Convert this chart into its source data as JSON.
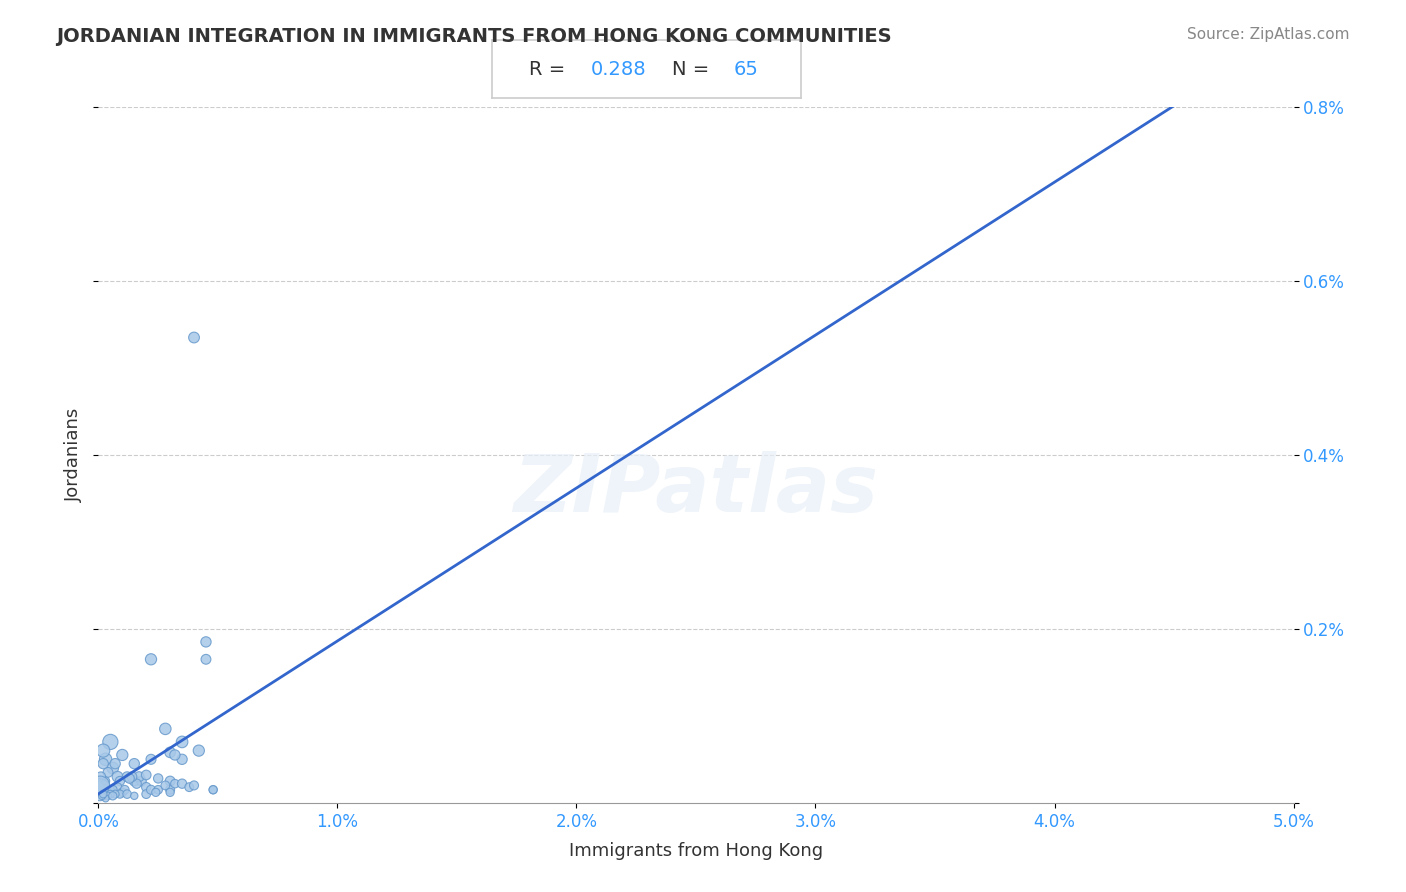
{
  "title": "JORDANIAN INTEGRATION IN IMMIGRANTS FROM HONG KONG COMMUNITIES",
  "source": "Source: ZipAtlas.com",
  "xlabel": "Immigrants from Hong Kong",
  "ylabel": "Jordanians",
  "R": 0.288,
  "N": 65,
  "xlim": [
    0.0,
    0.05
  ],
  "ylim": [
    0.0,
    0.008
  ],
  "xticks": [
    0.0,
    0.01,
    0.02,
    0.03,
    0.04,
    0.05
  ],
  "yticks": [
    0.0,
    0.002,
    0.004,
    0.006,
    0.008
  ],
  "xtick_labels": [
    "0.0%",
    "1.0%",
    "2.0%",
    "3.0%",
    "4.0%",
    "5.0%"
  ],
  "ytick_labels": [
    "",
    "0.2%",
    "0.4%",
    "0.6%",
    "0.8%"
  ],
  "scatter_color": "#a8c8e8",
  "scatter_edge_color": "#6699cc",
  "line_color": "#3366cc",
  "watermark_text": "ZIPatlas",
  "background_color": "#ffffff",
  "points": [
    [
      0.0005,
      0.0007
    ],
    [
      0.0003,
      0.0005
    ],
    [
      0.0002,
      0.0006
    ],
    [
      0.0006,
      0.0004
    ],
    [
      0.0008,
      0.0003
    ],
    [
      0.0004,
      0.00035
    ],
    [
      0.0007,
      0.00045
    ],
    [
      0.001,
      0.00055
    ],
    [
      0.0009,
      0.00025
    ],
    [
      0.0012,
      0.0003
    ],
    [
      0.0005,
      0.00015
    ],
    [
      0.0003,
      0.00025
    ],
    [
      0.0008,
      0.00018
    ],
    [
      0.0002,
      0.00045
    ],
    [
      0.0001,
      0.0003
    ],
    [
      5e-05,
      0.00015
    ],
    [
      8e-05,
      0.0002
    ],
    [
      0.0006,
      0.00015
    ],
    [
      0.0015,
      0.00045
    ],
    [
      0.0015,
      0.00025
    ],
    [
      0.0018,
      0.00025
    ],
    [
      0.0017,
      0.0003
    ],
    [
      0.0016,
      0.00022
    ],
    [
      0.0014,
      0.0003
    ],
    [
      0.0013,
      0.00028
    ],
    [
      0.001,
      0.00012
    ],
    [
      0.0011,
      0.00015
    ],
    [
      0.0009,
      0.0001
    ],
    [
      0.0012,
      0.0001
    ],
    [
      0.0007,
      0.0001
    ],
    [
      0.0005,
      0.0001
    ],
    [
      0.0004,
      8e-05
    ],
    [
      0.0003,
      5e-05
    ],
    [
      0.00015,
      8e-05
    ],
    [
      0.0002,
      0.0001
    ],
    [
      0.0006,
      8e-05
    ],
    [
      0.002,
      0.00018
    ],
    [
      0.002,
      0.0001
    ],
    [
      0.0022,
      0.00015
    ],
    [
      0.0025,
      0.00015
    ],
    [
      0.0024,
      0.00012
    ],
    [
      0.002,
      0.00032
    ],
    [
      0.0022,
      0.0005
    ],
    [
      0.0025,
      0.00028
    ],
    [
      0.003,
      0.00025
    ],
    [
      0.003,
      0.00015
    ],
    [
      0.0028,
      0.0002
    ],
    [
      0.0032,
      0.00022
    ],
    [
      0.0015,
      8e-05
    ],
    [
      0.0035,
      0.00022
    ],
    [
      0.0035,
      0.0005
    ],
    [
      0.004,
      0.00535
    ],
    [
      0.0038,
      0.00018
    ],
    [
      0.0022,
      0.00165
    ],
    [
      0.003,
      0.00058
    ],
    [
      0.003,
      0.00012
    ],
    [
      0.004,
      0.0002
    ],
    [
      0.0045,
      0.00185
    ],
    [
      0.0045,
      0.00165
    ],
    [
      0.0035,
      0.0007
    ],
    [
      0.0042,
      0.0006
    ],
    [
      0.0048,
      0.00015
    ],
    [
      0.0048,
      0.00015
    ],
    [
      0.0028,
      0.00085
    ],
    [
      0.0032,
      0.00055
    ]
  ],
  "point_sizes": [
    120,
    80,
    90,
    70,
    60,
    50,
    55,
    65,
    45,
    50,
    40,
    35,
    38,
    55,
    48,
    250,
    180,
    40,
    55,
    50,
    48,
    52,
    45,
    50,
    48,
    38,
    40,
    35,
    38,
    32,
    30,
    28,
    25,
    28,
    30,
    35,
    45,
    40,
    42,
    38,
    35,
    48,
    52,
    45,
    50,
    42,
    40,
    38,
    28,
    45,
    55,
    60,
    40,
    65,
    58,
    35,
    42,
    55,
    50,
    70,
    65,
    35,
    35,
    68,
    55
  ]
}
